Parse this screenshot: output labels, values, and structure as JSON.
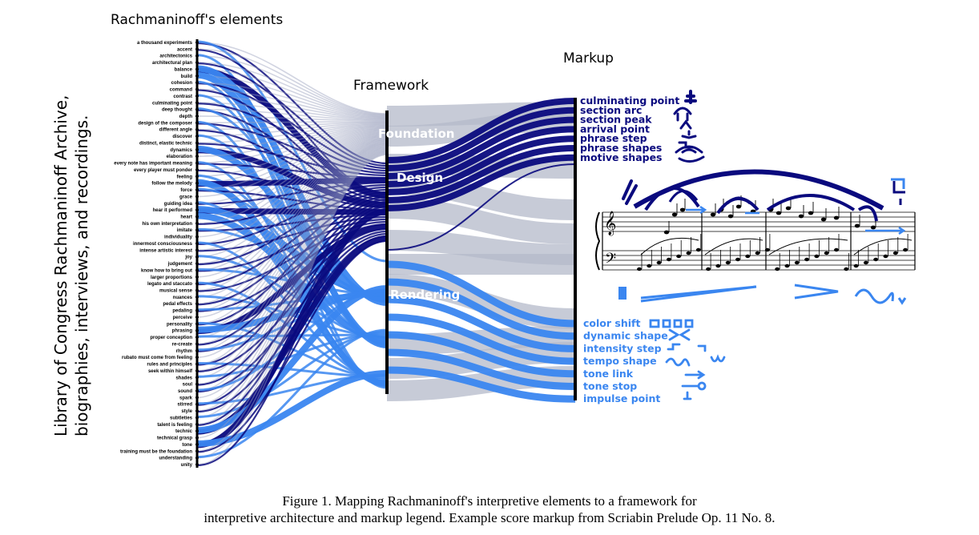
{
  "titles": {
    "elements": "Rachmaninoff's elements",
    "framework": "Framework",
    "markup": "Markup",
    "side_line1": "Library of Congress Rachmaninoff Archive,",
    "side_line2": "biographies, interviews, and recordings."
  },
  "elements": [
    "a thousand experiments",
    "accent",
    "architectonics",
    "architectural plan",
    "balance",
    "build",
    "cohesion",
    "command",
    "contrast",
    "culminating point",
    "deep thought",
    "depth",
    "design of the composer",
    "different angle",
    "discover",
    "distinct, elastic technic",
    "dynamics",
    "elaboration",
    "every note has important meaning",
    "every player must ponder",
    "feeling",
    "follow the melody",
    "force",
    "grace",
    "guiding idea",
    "hear it performed",
    "heart",
    "his own interpretation",
    "imitate",
    "individuality",
    "innermost consciousness",
    "intense artistic interest",
    "joy",
    "judgement",
    "know how to bring out",
    "larger proportions",
    "legato and staccato",
    "musical sense",
    "nuances",
    "pedal effects",
    "pedaling",
    "perceive",
    "personality",
    "phrasing",
    "proper conception",
    "re-create",
    "rhythm",
    "rubato must come from feeling",
    "rules and principles",
    "seek within himself",
    "shades",
    "soul",
    "sound",
    "spark",
    "stirred",
    "style",
    "subtleties",
    "talent is feeling",
    "technic",
    "technical grasp",
    "tone",
    "training must be the foundation",
    "understanding",
    "unity"
  ],
  "framework": [
    "Foundation",
    "Design",
    "Rendering"
  ],
  "markup_design": [
    "culminating point",
    "section arc",
    "section peak",
    "arrival point",
    "phrase step",
    "phrase shapes",
    "motive shapes"
  ],
  "markup_rendering": [
    "color shift",
    "dynamic shape",
    "intensity step",
    "tempo shape",
    "tone link",
    "tone stop",
    "impulse point"
  ],
  "colors": {
    "design": "#0a0a7e",
    "rendering": "#3a86f0",
    "foundation": "#b4b9ca",
    "thin": "#9aa0bd"
  },
  "caption": {
    "line1": "Figure 1. Mapping Rachmaninoff's interpretive elements to a framework for",
    "line2": "interpretive architecture and markup legend. Example score markup from Scriabin Prelude Op. 11 No. 8."
  }
}
